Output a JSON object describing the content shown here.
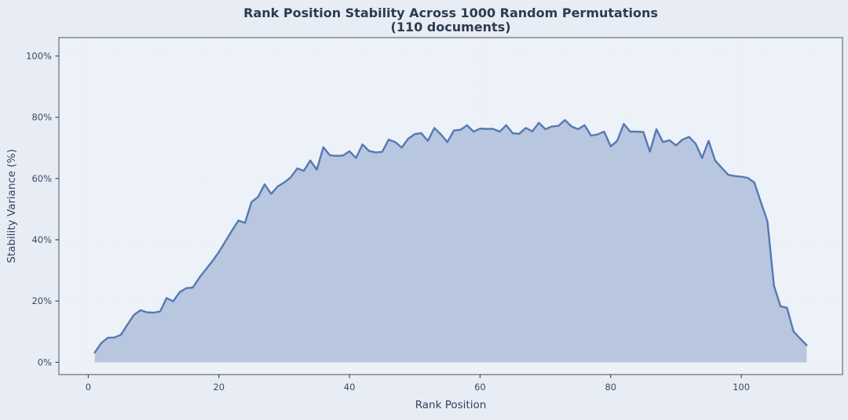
{
  "chart_data": {
    "type": "area",
    "title": "Rank Position Stability Across 1000 Random Permutations",
    "subtitle": "(110 documents)",
    "xlabel": "Rank Position",
    "ylabel": "Stability Variance (%)",
    "series_name": "stability-variance-by-rank",
    "x_start_rank": 1,
    "x_end_rank": 110,
    "values_pct": [
      3.2,
      6.3,
      8.0,
      8.1,
      9.0,
      12.3,
      15.5,
      17.0,
      16.3,
      16.2,
      16.6,
      21.0,
      19.9,
      22.9,
      24.2,
      24.4,
      27.6,
      30.3,
      33.0,
      36.0,
      39.5,
      43.0,
      46.3,
      45.5,
      52.3,
      54.0,
      58.1,
      55.0,
      57.4,
      58.7,
      60.4,
      63.3,
      62.5,
      65.9,
      62.9,
      70.2,
      67.6,
      67.4,
      67.5,
      68.9,
      66.7,
      71.1,
      69.0,
      68.5,
      68.7,
      72.7,
      71.9,
      70.1,
      73.0,
      74.5,
      74.8,
      72.3,
      76.5,
      74.4,
      71.9,
      75.7,
      75.9,
      77.4,
      75.3,
      76.3,
      76.2,
      76.2,
      75.3,
      77.4,
      74.8,
      74.6,
      76.5,
      75.4,
      78.2,
      76.1,
      77.0,
      77.2,
      79.1,
      77.0,
      76.1,
      77.4,
      74.0,
      74.4,
      75.3,
      70.5,
      72.3,
      77.8,
      75.3,
      75.3,
      75.2,
      68.8,
      76.1,
      71.9,
      72.5,
      70.8,
      72.7,
      73.6,
      71.4,
      66.7,
      72.3,
      65.9,
      63.5,
      61.2,
      60.8,
      60.6,
      60.2,
      58.7,
      52.3,
      46.0,
      25.0,
      18.3,
      17.8,
      10.1,
      7.8,
      5.6
    ],
    "xticks": [
      0,
      20,
      40,
      60,
      80,
      100
    ],
    "yticks_pct": [
      0,
      20,
      40,
      60,
      80,
      100
    ],
    "ytick_suffix": "%",
    "xlim": [
      -4.5,
      115.5
    ],
    "ylim_pct": [
      -4,
      106
    ],
    "grid": {
      "visible": true,
      "style": "dashed"
    },
    "legend_position": "none",
    "colors": {
      "line": "#5579b4",
      "fill": "#a9bad7",
      "fill_opacity": 0.78,
      "plot_bg": "#edf1f8",
      "figure_bg": "#e7ecf5",
      "grid": "#f6f0f1",
      "spine": "#848d9c",
      "title": "#2c3c50",
      "tick_text": "#3c4b60",
      "axis_label": "#33435c",
      "tick_mark": "#3c4b60"
    }
  }
}
